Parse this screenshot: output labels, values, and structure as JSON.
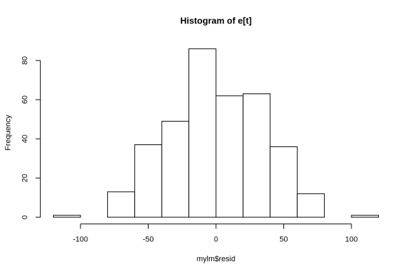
{
  "chart_data": {
    "type": "histogram",
    "title": "Histogram of e[t]",
    "x_label": "mylm$resid",
    "y_label": "Frequency",
    "bins": [
      -120,
      -100,
      -80,
      -60,
      -40,
      -20,
      0,
      20,
      40,
      60,
      80,
      100,
      120
    ],
    "values": [
      1,
      0,
      13,
      37,
      49,
      86,
      62,
      63,
      36,
      12,
      0,
      1
    ],
    "color": "#ffffff",
    "edge_color": "#000000",
    "xlim": [
      -129.6,
      129.6
    ],
    "ylim": [
      -3.44,
      89.44
    ],
    "xticks": [
      -100,
      -50,
      0,
      50,
      100
    ],
    "yticks": [
      0,
      20,
      40,
      60,
      80
    ],
    "grid": false
  }
}
